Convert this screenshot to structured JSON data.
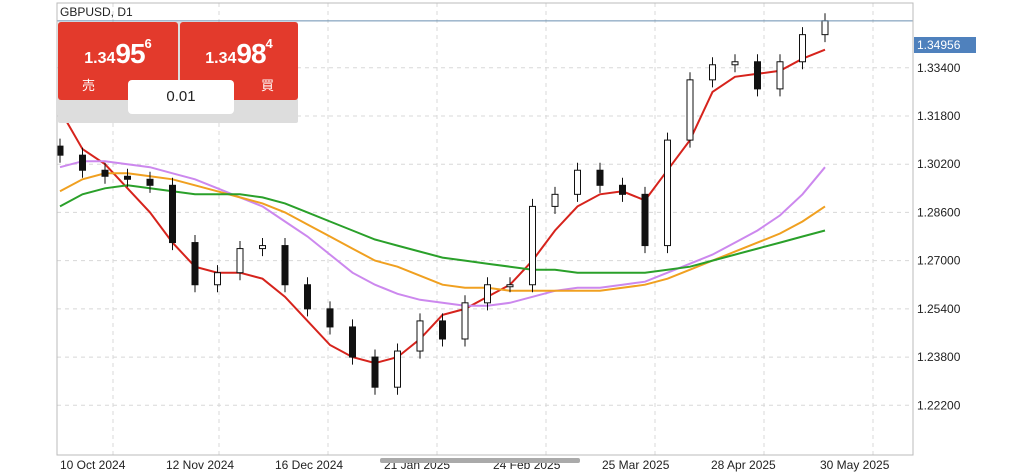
{
  "symbol_title": "GBPUSD, D1",
  "trade_panel": {
    "sell": {
      "price_small": "1.34",
      "price_big": "95",
      "price_tick": "6",
      "label": "売"
    },
    "buy": {
      "price_small": "1.34",
      "price_big": "98",
      "price_tick": "4",
      "label": "買"
    },
    "lot_size": "0.01"
  },
  "current_price_label": "1.34956",
  "colors": {
    "sell_button": "#e33a2c",
    "buy_button": "#e33a2c",
    "ma_red": "#d6231c",
    "ma_violet": "#cc88ee",
    "ma_orange": "#f0a020",
    "ma_green": "#2aa02a",
    "price_line": "#6a8fb0"
  },
  "chart_data": {
    "type": "line",
    "chart_style": "candlestick",
    "x_tick_labels": [
      "10 Oct 2024",
      "12 Nov 2024",
      "16 Dec 2024",
      "21 Jan 2025",
      "24 Feb 2025",
      "25 Mar 2025",
      "28 Apr 2025",
      "30 May 2025"
    ],
    "y_tick_labels": [
      "1.34956",
      "1.33400",
      "1.31800",
      "1.30200",
      "1.28600",
      "1.27000",
      "1.25400",
      "1.23800",
      "1.22200"
    ],
    "ylim": [
      1.2055,
      1.3555
    ],
    "grid": true,
    "current_price": 1.34956,
    "x": [
      "10 Oct 2024",
      "17 Oct 2024",
      "24 Oct 2024",
      "31 Oct 2024",
      "7 Nov 2024",
      "12 Nov 2024",
      "19 Nov 2024",
      "26 Nov 2024",
      "3 Dec 2024",
      "10 Dec 2024",
      "16 Dec 2024",
      "23 Dec 2024",
      "30 Dec 2024",
      "7 Jan 2025",
      "14 Jan 2025",
      "21 Jan 2025",
      "28 Jan 2025",
      "4 Feb 2025",
      "11 Feb 2025",
      "18 Feb 2025",
      "24 Feb 2025",
      "3 Mar 2025",
      "10 Mar 2025",
      "17 Mar 2025",
      "25 Mar 2025",
      "1 Apr 2025",
      "8 Apr 2025",
      "15 Apr 2025",
      "22 Apr 2025",
      "28 Apr 2025",
      "5 May 2025",
      "12 May 2025",
      "19 May 2025",
      "26 May 2025",
      "30 May 2025"
    ],
    "price": [
      1.305,
      1.3,
      1.298,
      1.297,
      1.295,
      1.276,
      1.262,
      1.266,
      1.274,
      1.275,
      1.262,
      1.254,
      1.248,
      1.238,
      1.228,
      1.24,
      1.25,
      1.244,
      1.256,
      1.262,
      1.262,
      1.288,
      1.292,
      1.3,
      1.295,
      1.292,
      1.275,
      1.31,
      1.33,
      1.335,
      1.336,
      1.327,
      1.336,
      1.345,
      1.3496
    ],
    "series": [
      {
        "values": [
          1.32,
          1.307,
          1.302,
          1.294,
          1.286,
          1.276,
          1.268,
          1.266,
          1.266,
          1.264,
          1.258,
          1.25,
          1.242,
          1.238,
          1.236,
          1.238,
          1.244,
          1.252,
          1.254,
          1.258,
          1.262,
          1.27,
          1.28,
          1.288,
          1.292,
          1.293,
          1.29,
          1.3,
          1.31,
          1.326,
          1.331,
          1.332,
          1.333,
          1.337,
          1.34
        ]
      },
      {
        "values": [
          1.301,
          1.303,
          1.303,
          1.302,
          1.301,
          1.299,
          1.297,
          1.294,
          1.291,
          1.288,
          1.283,
          1.278,
          1.272,
          1.266,
          1.262,
          1.259,
          1.257,
          1.256,
          1.255,
          1.255,
          1.256,
          1.258,
          1.26,
          1.261,
          1.261,
          1.262,
          1.263,
          1.266,
          1.269,
          1.272,
          1.276,
          1.28,
          1.285,
          1.292,
          1.301
        ]
      },
      {
        "values": [
          1.293,
          1.297,
          1.299,
          1.299,
          1.298,
          1.297,
          1.295,
          1.293,
          1.291,
          1.289,
          1.286,
          1.282,
          1.278,
          1.274,
          1.27,
          1.268,
          1.265,
          1.262,
          1.261,
          1.261,
          1.26,
          1.26,
          1.26,
          1.26,
          1.26,
          1.261,
          1.262,
          1.264,
          1.267,
          1.27,
          1.273,
          1.276,
          1.279,
          1.283,
          1.288
        ]
      },
      {
        "values": [
          1.288,
          1.292,
          1.294,
          1.295,
          1.294,
          1.293,
          1.292,
          1.292,
          1.292,
          1.291,
          1.289,
          1.286,
          1.283,
          1.28,
          1.277,
          1.275,
          1.273,
          1.271,
          1.27,
          1.269,
          1.268,
          1.267,
          1.267,
          1.266,
          1.266,
          1.266,
          1.266,
          1.267,
          1.268,
          1.27,
          1.272,
          1.274,
          1.276,
          1.278,
          1.28
        ]
      }
    ]
  }
}
